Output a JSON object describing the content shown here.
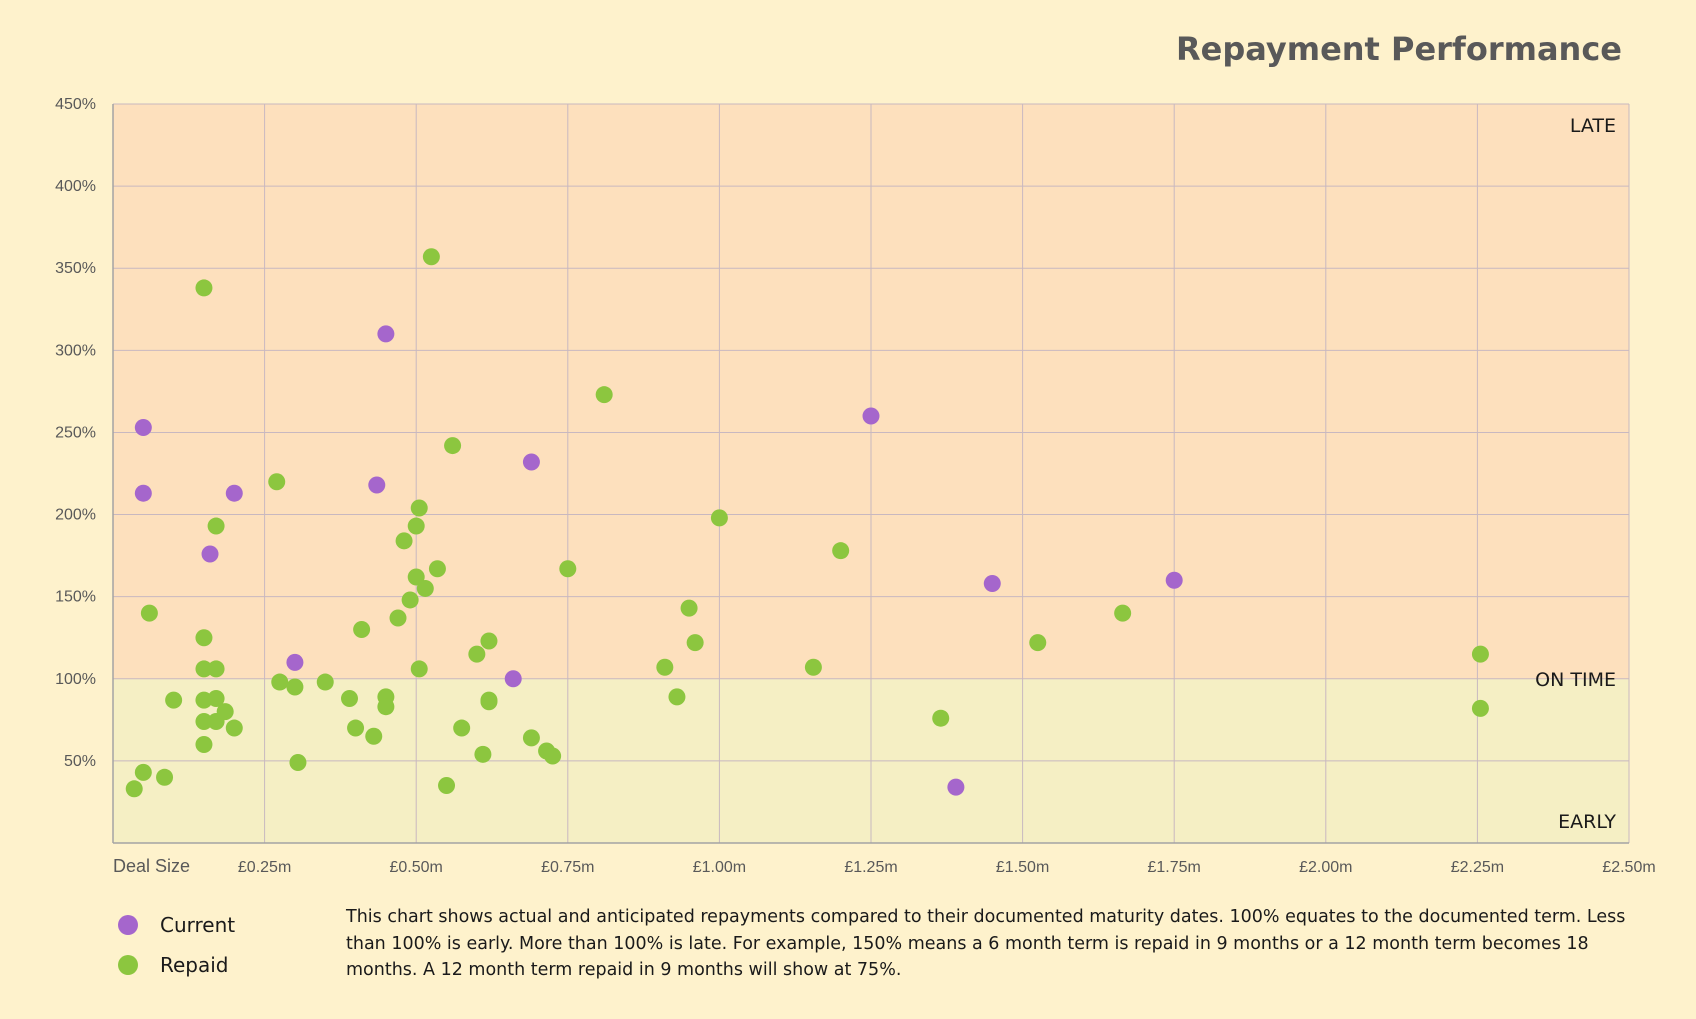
{
  "chart_data": {
    "type": "scatter",
    "title": "Repayment Performance",
    "xlabel": "Deal Size",
    "ylabel": "",
    "xlim": [
      0,
      2.5
    ],
    "ylim": [
      0,
      450
    ],
    "grid": true,
    "x_ticks": [
      {
        "value": 0.25,
        "label": "£0.25m"
      },
      {
        "value": 0.5,
        "label": "£0.50m"
      },
      {
        "value": 0.75,
        "label": "£0.75m"
      },
      {
        "value": 1.0,
        "label": "£1.00m"
      },
      {
        "value": 1.25,
        "label": "£1.25m"
      },
      {
        "value": 1.5,
        "label": "£1.50m"
      },
      {
        "value": 1.75,
        "label": "£1.75m"
      },
      {
        "value": 2.0,
        "label": "£2.00m"
      },
      {
        "value": 2.25,
        "label": "£2.25m"
      },
      {
        "value": 2.5,
        "label": "£2.50m"
      }
    ],
    "y_ticks": [
      {
        "value": 50,
        "label": "50%"
      },
      {
        "value": 100,
        "label": "100%"
      },
      {
        "value": 150,
        "label": "150%"
      },
      {
        "value": 200,
        "label": "200%"
      },
      {
        "value": 250,
        "label": "250%"
      },
      {
        "value": 300,
        "label": "300%"
      },
      {
        "value": 350,
        "label": "350%"
      },
      {
        "value": 400,
        "label": "400%"
      },
      {
        "value": 450,
        "label": "450%"
      }
    ],
    "zones": [
      {
        "label": "LATE",
        "from": 100,
        "to": 450,
        "color": "#fde0bd"
      },
      {
        "label": "ON TIME",
        "value": 100
      },
      {
        "label": "EARLY",
        "from": 0,
        "to": 100,
        "color": "#f5efc4"
      }
    ],
    "series": [
      {
        "name": "Current",
        "color": "#a566cc",
        "points": [
          [
            0.05,
            253
          ],
          [
            0.05,
            213
          ],
          [
            0.16,
            176
          ],
          [
            0.2,
            213
          ],
          [
            0.3,
            110
          ],
          [
            0.45,
            310
          ],
          [
            0.435,
            218
          ],
          [
            0.69,
            232
          ],
          [
            0.66,
            100
          ],
          [
            1.25,
            260
          ],
          [
            1.45,
            158
          ],
          [
            1.39,
            34
          ],
          [
            1.75,
            160
          ]
        ]
      },
      {
        "name": "Repaid",
        "color": "#8cc63f",
        "points": [
          [
            0.035,
            33
          ],
          [
            0.05,
            43
          ],
          [
            0.085,
            40
          ],
          [
            0.06,
            140
          ],
          [
            0.1,
            87
          ],
          [
            0.15,
            338
          ],
          [
            0.15,
            125
          ],
          [
            0.15,
            106
          ],
          [
            0.15,
            87
          ],
          [
            0.15,
            74
          ],
          [
            0.15,
            60
          ],
          [
            0.17,
            193
          ],
          [
            0.17,
            106
          ],
          [
            0.17,
            88
          ],
          [
            0.17,
            74
          ],
          [
            0.185,
            80
          ],
          [
            0.2,
            70
          ],
          [
            0.27,
            220
          ],
          [
            0.275,
            98
          ],
          [
            0.3,
            95
          ],
          [
            0.305,
            49
          ],
          [
            0.35,
            98
          ],
          [
            0.39,
            88
          ],
          [
            0.4,
            70
          ],
          [
            0.41,
            130
          ],
          [
            0.43,
            65
          ],
          [
            0.45,
            89
          ],
          [
            0.45,
            83
          ],
          [
            0.47,
            137
          ],
          [
            0.48,
            184
          ],
          [
            0.49,
            148
          ],
          [
            0.5,
            193
          ],
          [
            0.5,
            162
          ],
          [
            0.505,
            204
          ],
          [
            0.505,
            106
          ],
          [
            0.515,
            155
          ],
          [
            0.525,
            357
          ],
          [
            0.535,
            167
          ],
          [
            0.55,
            35
          ],
          [
            0.56,
            242
          ],
          [
            0.575,
            70
          ],
          [
            0.6,
            115
          ],
          [
            0.61,
            54
          ],
          [
            0.62,
            123
          ],
          [
            0.62,
            87
          ],
          [
            0.62,
            86
          ],
          [
            0.69,
            64
          ],
          [
            0.715,
            56
          ],
          [
            0.725,
            53
          ],
          [
            0.75,
            167
          ],
          [
            0.81,
            273
          ],
          [
            0.91,
            107
          ],
          [
            0.93,
            89
          ],
          [
            0.95,
            143
          ],
          [
            0.96,
            122
          ],
          [
            1.0,
            198
          ],
          [
            1.155,
            107
          ],
          [
            1.2,
            178
          ],
          [
            1.365,
            76
          ],
          [
            1.525,
            122
          ],
          [
            1.665,
            140
          ],
          [
            2.255,
            115
          ],
          [
            2.255,
            82
          ]
        ]
      }
    ]
  },
  "legend": {
    "current_label": "Current",
    "repaid_label": "Repaid"
  },
  "note": "This chart shows actual and anticipated repayments compared to their documented maturity dates.  100% equates to the documented term.  Less than 100% is early.  More than 100% is late.  For example, 150% means a 6 month term is repaid in 9 months or a 12 month term becomes 18 months.  A 12 month term repaid in 9 months will show at 75%."
}
